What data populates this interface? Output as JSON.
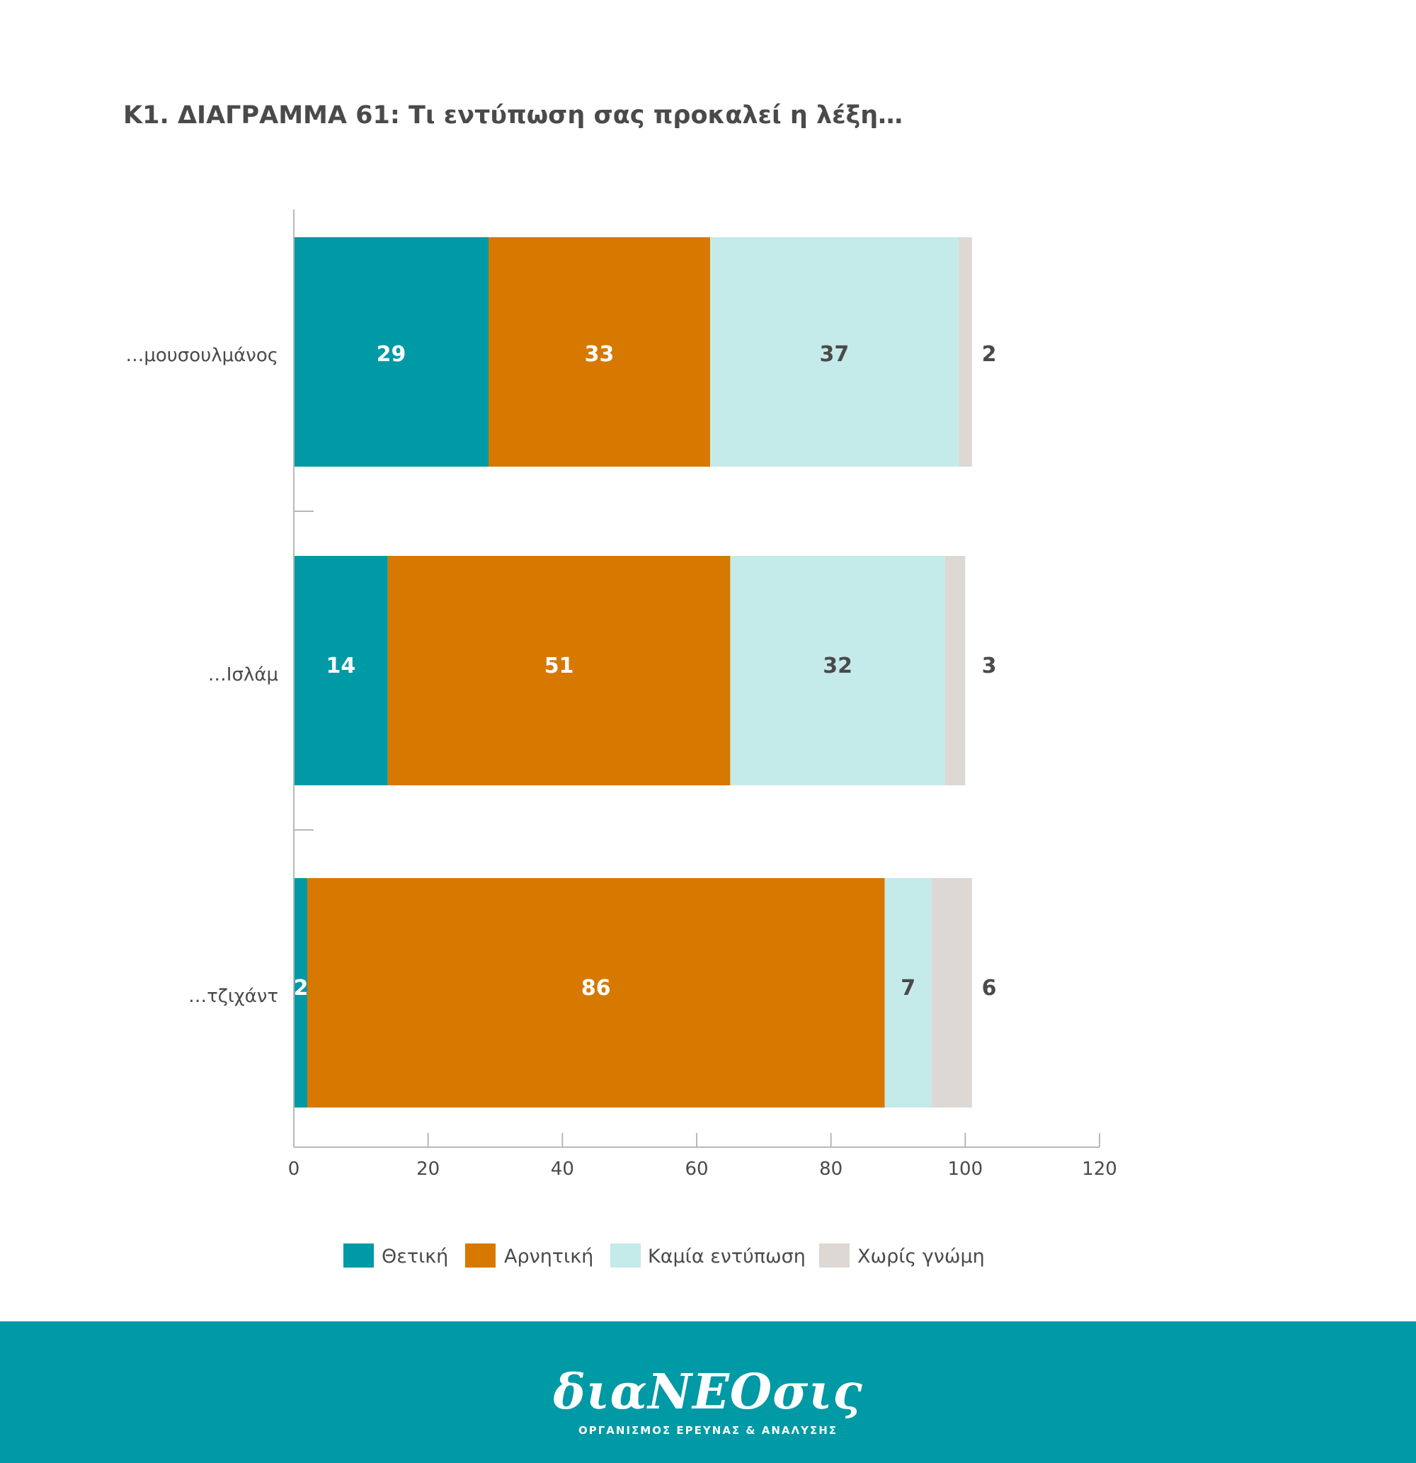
{
  "title": "Κ1. ΔΙΑΓΡΑΜΜΑ 61: Τι εντύπωση σας προκαλεί η λέξη…",
  "chart_data": {
    "type": "bar",
    "orientation": "horizontal",
    "stacked": true,
    "categories": [
      "…μουσουλμάνος",
      "…Ισλάμ",
      "…τζιχάντ"
    ],
    "series": [
      {
        "name": "Θετική",
        "values": [
          29,
          14,
          2
        ],
        "color": "#0099a6"
      },
      {
        "name": "Αρνητική",
        "values": [
          33,
          51,
          86
        ],
        "color": "#d77800"
      },
      {
        "name": "Καμία εντύπωση",
        "values": [
          37,
          32,
          7
        ],
        "color": "#c5eaea"
      },
      {
        "name": "Χωρίς γνώμη",
        "values": [
          2,
          3,
          6
        ],
        "color": "#ddd8d4"
      }
    ],
    "value_labels": [
      [
        "29",
        "33",
        "37",
        "2"
      ],
      [
        "14",
        "51",
        "32",
        "3"
      ],
      [
        "2",
        "86",
        "7",
        "6"
      ]
    ],
    "xlim": [
      0,
      120
    ],
    "xticks": [
      0,
      20,
      40,
      60,
      80,
      100,
      120
    ],
    "grid": false,
    "legend_position": "bottom"
  },
  "footer": {
    "logo_text": "διαΝΕΟσις",
    "tagline": "ΟΡΓΑΝΙΣΜΟΣ ΕΡΕΥΝΑΣ & ΑΝΑΛΥΣΗΣ",
    "background": "#0099a6"
  }
}
